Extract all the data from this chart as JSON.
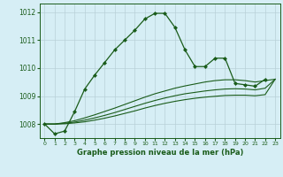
{
  "title": "Graphe pression niveau de la mer (hPa)",
  "background_color": "#d6eef5",
  "grid_color": "#b8d0d8",
  "line_color": "#1a5c1a",
  "ylim": [
    1007.5,
    1012.3
  ],
  "yticks": [
    1008,
    1009,
    1010,
    1011,
    1012
  ],
  "x_labels": [
    "0",
    "1",
    "2",
    "3",
    "4",
    "5",
    "6",
    "7",
    "8",
    "9",
    "10",
    "11",
    "12",
    "13",
    "14",
    "15",
    "16",
    "17",
    "18",
    "19",
    "20",
    "21",
    "22",
    "23"
  ],
  "series1_x": [
    0,
    1,
    2,
    3,
    4,
    5,
    6,
    7,
    8,
    9,
    10,
    11,
    12,
    13,
    14,
    15,
    16,
    17,
    18,
    19,
    20,
    21,
    22
  ],
  "series1_y": [
    1008.0,
    1007.65,
    1007.75,
    1008.45,
    1009.25,
    1009.75,
    1010.2,
    1010.65,
    1011.0,
    1011.35,
    1011.75,
    1011.95,
    1011.95,
    1011.45,
    1010.65,
    1010.05,
    1010.05,
    1010.35,
    1010.35,
    1009.45,
    1009.4,
    1009.35,
    1009.6
  ],
  "series2_x": [
    0,
    1,
    2,
    3,
    4,
    5,
    6,
    7,
    8,
    9,
    10,
    11,
    12,
    13,
    14,
    15,
    16,
    17,
    18,
    19,
    20,
    21,
    22,
    23
  ],
  "series2_y": [
    1008.0,
    1008.0,
    1008.05,
    1008.12,
    1008.22,
    1008.33,
    1008.45,
    1008.57,
    1008.7,
    1008.83,
    1008.96,
    1009.08,
    1009.18,
    1009.28,
    1009.36,
    1009.43,
    1009.5,
    1009.55,
    1009.58,
    1009.58,
    1009.55,
    1009.5,
    1009.55,
    1009.6
  ],
  "series3_x": [
    0,
    1,
    2,
    3,
    4,
    5,
    6,
    7,
    8,
    9,
    10,
    11,
    12,
    13,
    14,
    15,
    16,
    17,
    18,
    19,
    20,
    21,
    22,
    23
  ],
  "series3_y": [
    1008.0,
    1008.0,
    1008.03,
    1008.07,
    1008.14,
    1008.22,
    1008.31,
    1008.41,
    1008.52,
    1008.63,
    1008.74,
    1008.84,
    1008.93,
    1009.01,
    1009.08,
    1009.13,
    1009.18,
    1009.22,
    1009.25,
    1009.26,
    1009.25,
    1009.22,
    1009.28,
    1009.6
  ],
  "series4_x": [
    0,
    1,
    2,
    3,
    4,
    5,
    6,
    7,
    8,
    9,
    10,
    11,
    12,
    13,
    14,
    15,
    16,
    17,
    18,
    19,
    20,
    21,
    22,
    23
  ],
  "series4_y": [
    1008.0,
    1008.0,
    1008.01,
    1008.04,
    1008.08,
    1008.14,
    1008.21,
    1008.29,
    1008.38,
    1008.47,
    1008.57,
    1008.66,
    1008.74,
    1008.81,
    1008.87,
    1008.92,
    1008.96,
    1008.99,
    1009.02,
    1009.03,
    1009.03,
    1009.01,
    1009.05,
    1009.6
  ]
}
